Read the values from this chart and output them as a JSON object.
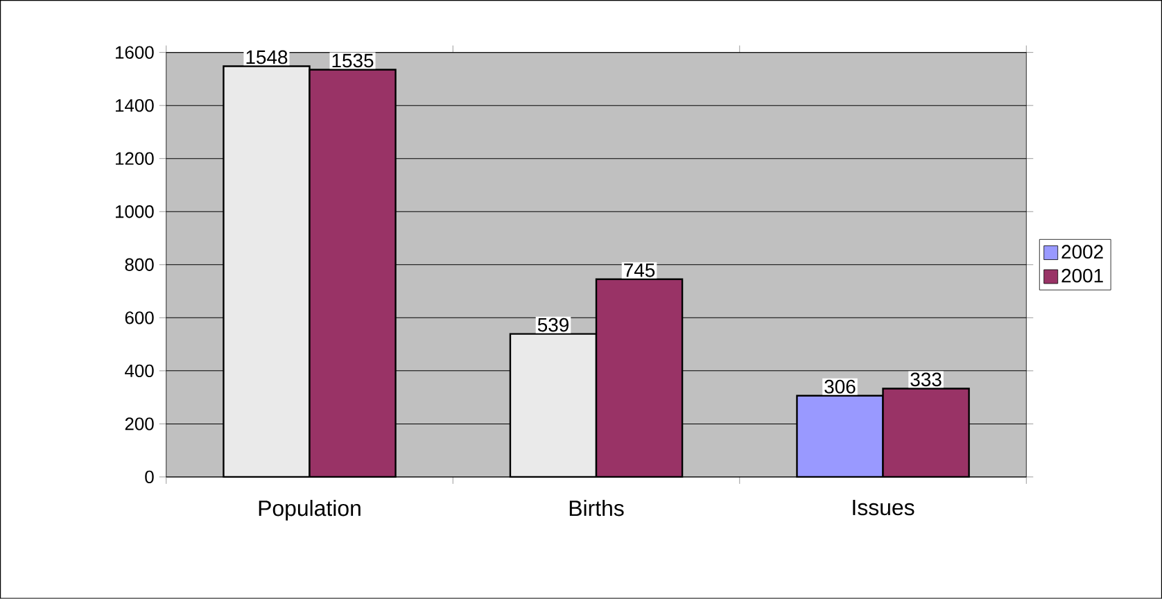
{
  "chart_data": {
    "type": "bar",
    "categories": [
      "Population",
      "Births",
      "Issues"
    ],
    "series": [
      {
        "name": "2002",
        "color": "#9999ff",
        "colors": [
          "#eaeaea",
          "#eaeaea",
          "#9999ff"
        ],
        "values": [
          1548,
          539,
          306
        ]
      },
      {
        "name": "2001",
        "color": "#993366",
        "values": [
          1535,
          745,
          333
        ]
      }
    ],
    "ylim": [
      0,
      1600
    ],
    "yticks": [
      0,
      200,
      400,
      600,
      800,
      1000,
      1200,
      1400,
      1600
    ],
    "grid": "y",
    "legend": "right",
    "data_labels": true
  }
}
